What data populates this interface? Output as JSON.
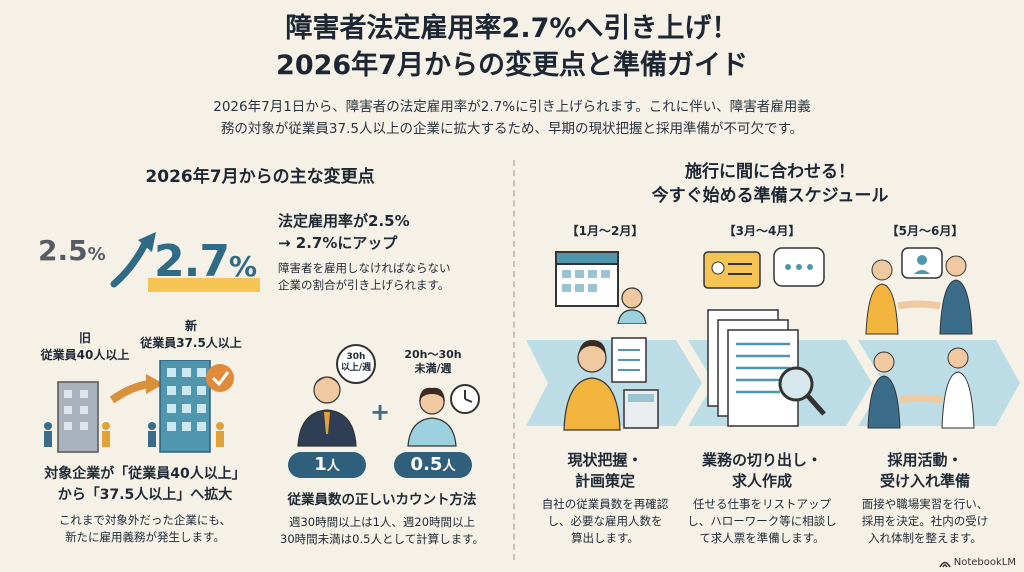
{
  "header": {
    "title_line1": "障害者法定雇用率2.7%へ引き上げ！",
    "title_line2": "2026年7月からの変更点と準備ガイド",
    "intro_line1": "2026年7月1日から、障害者の法定雇用率が2.7%に引き上げられます。これに伴い、障害者雇用義",
    "intro_line2": "務の対象が従業員37.5人以上の企業に拡大するため、早期の現状把握と採用準備が不可欠です。"
  },
  "left": {
    "section_title": "2026年7月からの主な変更点",
    "rate": {
      "old_num": "2.5",
      "old_unit": "%",
      "new_num": "2.7",
      "new_unit": "%",
      "heading_line1": "法定雇用率が2.5%",
      "heading_line2": "→ 2.7%にアップ",
      "desc_line1": "障害者を雇用しなければならない",
      "desc_line2": "企業の割合が引き上げられます。"
    },
    "scope": {
      "old_label1": "旧",
      "old_label2": "従業員40人以上",
      "new_label1": "新",
      "new_label2": "従業員37.5人以上",
      "heading_line1": "対象企業が「従業員40人以上」",
      "heading_line2": "から「37.5人以上」へ拡大",
      "desc_line1": "これまで対象外だった企業にも、",
      "desc_line2": "新たに雇用義務が発生します。"
    },
    "count": {
      "clock1_line1": "30h",
      "clock1_line2": "以上/週",
      "clock2_line1": "20h〜30h",
      "clock2_line2": "未満/週",
      "plus": "+",
      "badge1_num": "1",
      "badge1_unit": "人",
      "badge2_num": "0.5",
      "badge2_unit": "人",
      "heading": "従業員数の正しいカウント方法",
      "desc_line1": "週30時間以上は1人、週20時間以上",
      "desc_line2": "30時間未満は0.5人として計算します。"
    }
  },
  "right": {
    "section_title_line1": "施行に間に合わせる！",
    "section_title_line2": "今すぐ始める準備スケジュール",
    "steps": [
      {
        "period": "【1月〜2月】",
        "title_line1": "現状把握・",
        "title_line2": "計画策定",
        "desc_line1": "自社の従業員数を再確認",
        "desc_line2": "し、必要な雇用人数を",
        "desc_line3": "算出します。"
      },
      {
        "period": "【3月〜4月】",
        "title_line1": "業務の切り出し・",
        "title_line2": "求人作成",
        "desc_line1": "任せる仕事をリストアップ",
        "desc_line2": "し、ハローワーク等に相談し",
        "desc_line3": "て求人票を準備します。"
      },
      {
        "period": "【5月〜6月】",
        "title_line1": "採用活動・",
        "title_line2": "受け入れ準備",
        "desc_line1": "面接や職場実習を行い、",
        "desc_line2": "採用を決定。社内の受け",
        "desc_line3": "入れ体制を整えます。"
      }
    ]
  },
  "footer": {
    "brand": "NotebookLM"
  },
  "colors": {
    "background": "#f6f1e6",
    "accent_blue": "#2f6b86",
    "accent_yellow": "#f5c452",
    "band": "#bcdde6"
  }
}
